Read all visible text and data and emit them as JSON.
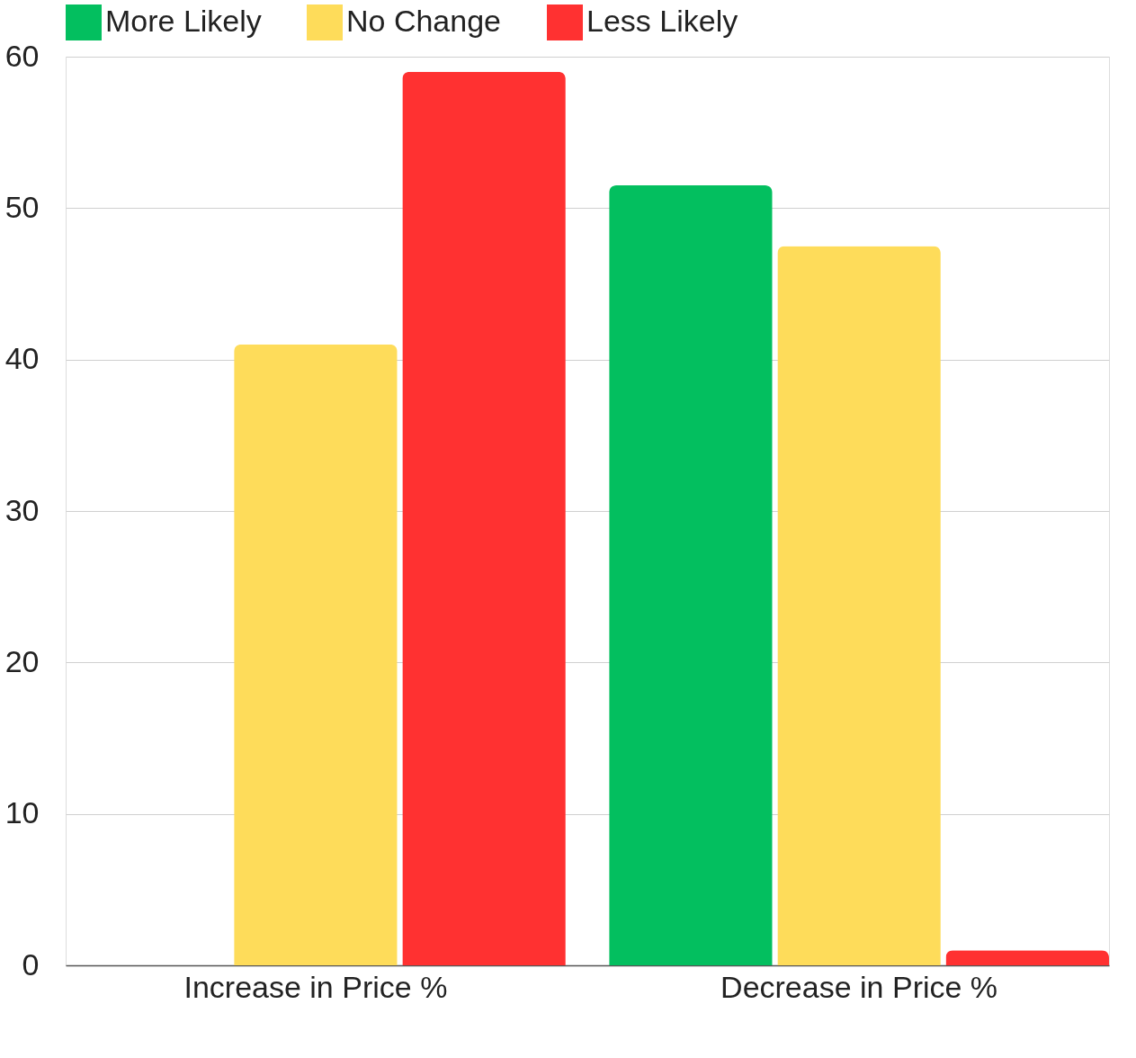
{
  "chart_data": {
    "type": "bar",
    "categories": [
      "Increase in Price %",
      "Decrease in Price %"
    ],
    "series": [
      {
        "name": "More Likely",
        "color": "#03bf5f",
        "values": [
          0,
          51.5
        ]
      },
      {
        "name": "No Change",
        "color": "#fedc5a",
        "values": [
          41,
          47.5
        ]
      },
      {
        "name": "Less Likely",
        "color": "#ff3131",
        "values": [
          59,
          1
        ]
      }
    ],
    "ylim": [
      0,
      60
    ],
    "yticks": [
      0,
      10,
      20,
      30,
      40,
      50,
      60
    ],
    "grid": "y",
    "legend": "top"
  }
}
